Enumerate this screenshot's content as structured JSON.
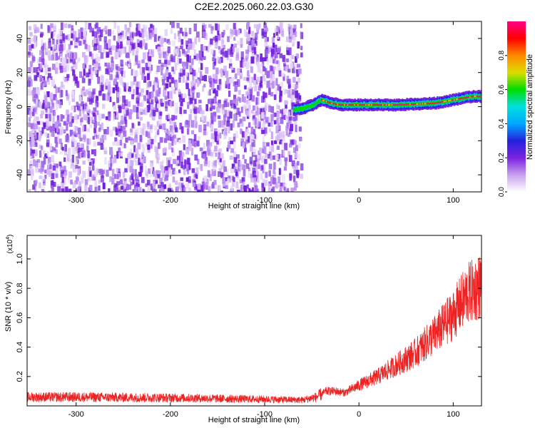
{
  "figure": {
    "title": "C2E2.2025.060.22.03.G30"
  },
  "chart_data": [
    {
      "type": "heatmap",
      "xlabel": "Height of straight line (km)",
      "ylabel": "Frequency (Hz)",
      "xlim": [
        -352,
        130
      ],
      "ylim": [
        -50,
        50
      ],
      "xticks": [
        -300,
        -200,
        -100,
        0,
        100
      ],
      "xtick_labels": [
        "-300",
        "-200",
        "-100",
        "0",
        "100"
      ],
      "yticks": [
        -40,
        -20,
        0,
        20,
        40
      ],
      "ytick_labels": [
        "-40",
        "-20",
        "0",
        "20",
        "40"
      ],
      "noise_region_x": [
        -352,
        -62
      ],
      "signal_track": {
        "x": [
          -70,
          -60,
          -50,
          -40,
          -30,
          -20,
          0,
          20,
          40,
          60,
          80,
          100,
          120,
          130
        ],
        "frequency": [
          -2,
          -1,
          1,
          4,
          2,
          1,
          1,
          1,
          1,
          1.5,
          2,
          4,
          6,
          6
        ]
      },
      "colorbar": {
        "label": "Normalized spectral amplitude",
        "range": [
          0,
          1
        ],
        "ticks": [
          0.0,
          0.2,
          0.4,
          0.6,
          0.8
        ],
        "tick_labels": [
          "0.0",
          "0.2",
          "0.4",
          "0.6",
          "0.8"
        ],
        "colors": [
          "#ffffff",
          "#c9a0f0",
          "#7a22e0",
          "#2222dd",
          "#00a8ff",
          "#00e0e0",
          "#00dd00",
          "#dddd00",
          "#ff8800",
          "#ff0000",
          "#ff0088"
        ]
      }
    },
    {
      "type": "line",
      "xlabel": "Height of straight line (km)",
      "ylabel": "SNR (10 * v/v)",
      "multiplier_label": "(x10",
      "multiplier_exp": "4",
      "multiplier_close": ")",
      "xlim": [
        -352,
        130
      ],
      "ylim": [
        0,
        1.16
      ],
      "xticks": [
        -300,
        -200,
        -100,
        0,
        100
      ],
      "xtick_labels": [
        "-300",
        "-200",
        "-100",
        "0",
        "100"
      ],
      "yticks": [
        0.2,
        0.4,
        0.6,
        0.8,
        1.0
      ],
      "ytick_labels": [
        "0.2",
        "0.4",
        "0.6",
        "0.8",
        "1.0"
      ],
      "color": "#ee2222",
      "trend": {
        "x": [
          -352,
          -300,
          -200,
          -150,
          -100,
          -60,
          -45,
          -35,
          -25,
          -15,
          0,
          20,
          40,
          60,
          80,
          100,
          115,
          130
        ],
        "y": [
          0.06,
          0.06,
          0.055,
          0.05,
          0.045,
          0.04,
          0.06,
          0.1,
          0.1,
          0.09,
          0.14,
          0.2,
          0.28,
          0.36,
          0.48,
          0.62,
          0.76,
          0.82
        ]
      }
    }
  ]
}
